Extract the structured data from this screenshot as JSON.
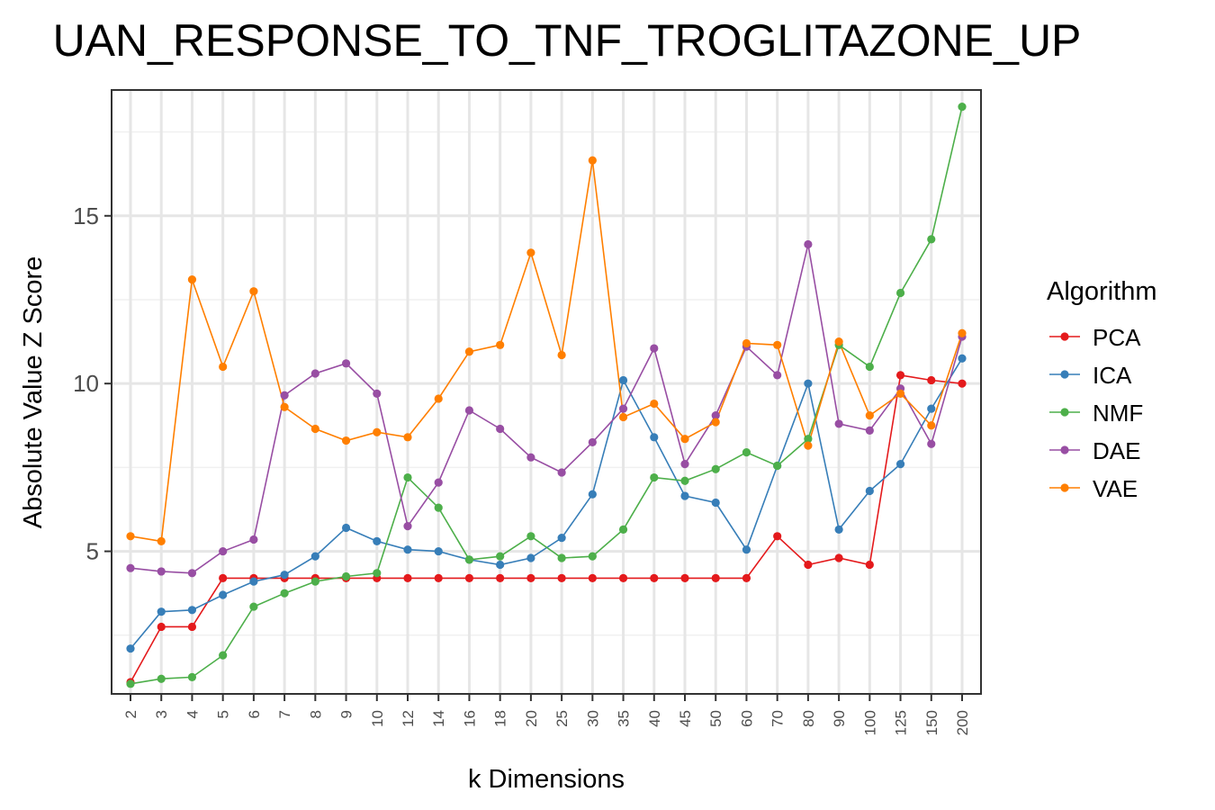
{
  "chart_data": {
    "type": "line",
    "title": "UAN_RESPONSE_TO_TNF_TROGLITAZONE_UP",
    "xlabel": "k Dimensions",
    "ylabel": "Absolute Value Z Score",
    "ylim": [
      0.75,
      18.75
    ],
    "yticks": [
      5,
      10,
      15
    ],
    "grid": true,
    "legend_title": "Algorithm",
    "legend_position": "right",
    "categories": [
      "2",
      "3",
      "4",
      "5",
      "6",
      "7",
      "8",
      "9",
      "10",
      "12",
      "14",
      "16",
      "18",
      "20",
      "25",
      "30",
      "35",
      "40",
      "45",
      "50",
      "60",
      "70",
      "80",
      "90",
      "100",
      "125",
      "150",
      "200"
    ],
    "series": [
      {
        "name": "PCA",
        "color": "#e41a1c",
        "values": [
          1.1,
          2.75,
          2.75,
          4.2,
          4.2,
          4.2,
          4.2,
          4.2,
          4.2,
          4.2,
          4.2,
          4.2,
          4.2,
          4.2,
          4.2,
          4.2,
          4.2,
          4.2,
          4.2,
          4.2,
          4.2,
          5.45,
          4.6,
          4.8,
          4.6,
          10.25,
          10.1,
          10.0
        ]
      },
      {
        "name": "ICA",
        "color": "#377eb8",
        "values": [
          2.1,
          3.2,
          3.25,
          3.7,
          4.1,
          4.3,
          4.85,
          5.7,
          5.3,
          5.05,
          5.0,
          4.75,
          4.6,
          4.8,
          5.4,
          6.7,
          10.1,
          8.4,
          6.65,
          6.45,
          5.05,
          7.55,
          10.0,
          5.65,
          6.8,
          7.6,
          9.25,
          10.75
        ]
      },
      {
        "name": "NMF",
        "color": "#4daf4a",
        "values": [
          1.05,
          1.2,
          1.25,
          1.9,
          3.35,
          3.75,
          4.1,
          4.25,
          4.35,
          7.2,
          6.3,
          4.75,
          4.85,
          5.45,
          4.8,
          4.85,
          5.65,
          7.2,
          7.1,
          7.45,
          7.95,
          7.55,
          8.35,
          11.15,
          10.5,
          12.7,
          14.3,
          18.25
        ]
      },
      {
        "name": "DAE",
        "color": "#984ea3",
        "values": [
          4.5,
          4.4,
          4.35,
          5.0,
          5.35,
          9.65,
          10.3,
          10.6,
          9.7,
          5.75,
          7.05,
          9.2,
          8.65,
          7.8,
          7.35,
          8.25,
          9.25,
          11.05,
          7.6,
          9.05,
          11.1,
          10.25,
          14.15,
          8.8,
          8.6,
          9.85,
          8.2,
          11.4
        ]
      },
      {
        "name": "VAE",
        "color": "#ff7f00",
        "values": [
          5.45,
          5.3,
          13.1,
          10.5,
          12.75,
          9.3,
          8.65,
          8.3,
          8.55,
          8.4,
          9.55,
          10.95,
          11.15,
          13.9,
          10.85,
          16.65,
          9.0,
          9.4,
          8.35,
          8.85,
          11.2,
          11.15,
          8.15,
          11.25,
          9.05,
          9.7,
          8.75,
          11.5
        ]
      }
    ]
  }
}
